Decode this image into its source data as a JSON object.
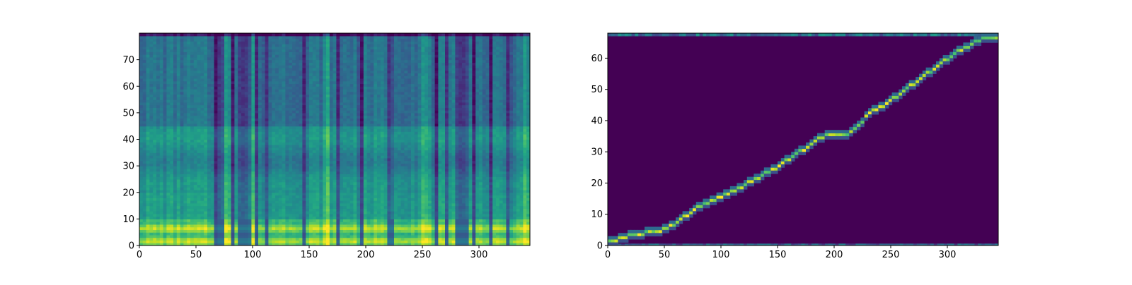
{
  "chart_data": [
    {
      "type": "heatmap",
      "title": "",
      "xlabel": "",
      "ylabel": "",
      "xlim": [
        0,
        345
      ],
      "ylim": [
        0,
        80
      ],
      "x_ticks": [
        0,
        50,
        100,
        150,
        200,
        250,
        300
      ],
      "y_ticks": [
        0,
        10,
        20,
        30,
        40,
        50,
        60,
        70
      ],
      "colormap": "viridis",
      "description_values": {
        "low_band_rows": [
          0,
          10
        ],
        "dark_columns": [
          67,
          72,
          82,
          90,
          96,
          104,
          112,
          146,
          176,
          196,
          222,
          262,
          272,
          282,
          288,
          296,
          310,
          326
        ],
        "bright_columns": [
          78,
          100,
          166,
          252,
          340
        ]
      }
    },
    {
      "type": "heatmap",
      "title": "",
      "xlabel": "",
      "ylabel": "",
      "xlim": [
        0,
        345
      ],
      "ylim": [
        0,
        68
      ],
      "x_ticks": [
        0,
        50,
        100,
        150,
        200,
        250,
        300
      ],
      "y_ticks": [
        0,
        10,
        20,
        30,
        40,
        50,
        60
      ],
      "colormap": "viridis",
      "alignment_path": [
        [
          0,
          1
        ],
        [
          15,
          2
        ],
        [
          20,
          3
        ],
        [
          45,
          4
        ],
        [
          60,
          7
        ],
        [
          75,
          11
        ],
        [
          90,
          14
        ],
        [
          105,
          16
        ],
        [
          120,
          19
        ],
        [
          135,
          22
        ],
        [
          150,
          25
        ],
        [
          165,
          29
        ],
        [
          175,
          31
        ],
        [
          185,
          34
        ],
        [
          195,
          35
        ],
        [
          210,
          35
        ],
        [
          220,
          38
        ],
        [
          230,
          42
        ],
        [
          245,
          45
        ],
        [
          260,
          49
        ],
        [
          275,
          53
        ],
        [
          290,
          57
        ],
        [
          305,
          61
        ],
        [
          320,
          64
        ],
        [
          330,
          66
        ],
        [
          345,
          66
        ]
      ]
    }
  ],
  "colors": {
    "viridis_dark": "#440154",
    "viridis_teal": "#21918c",
    "viridis_yellow": "#fde725"
  }
}
